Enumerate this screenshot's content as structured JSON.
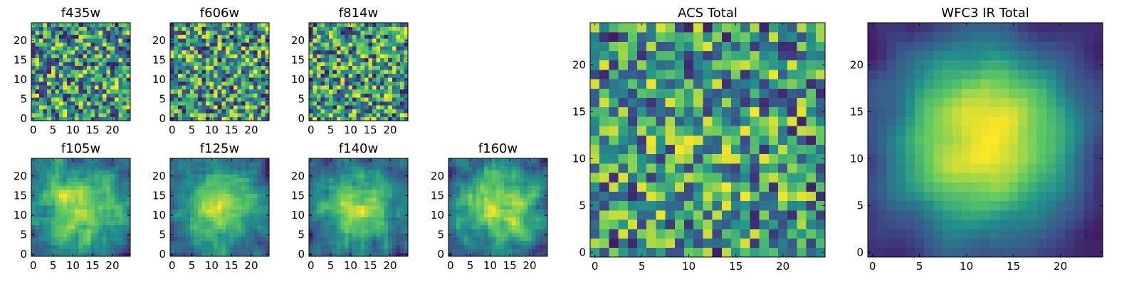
{
  "chart_data": [
    {
      "type": "heatmap",
      "title": "f435w",
      "x_ticks": [
        0,
        5,
        10,
        15,
        20
      ],
      "y_ticks": [
        0,
        5,
        10,
        15,
        20
      ],
      "xlim": [
        -0.5,
        24.5
      ],
      "ylim": [
        -0.5,
        24.5
      ],
      "grid": "off",
      "size": 25,
      "smoothness": 0,
      "center_bump": 0.0,
      "noise": 0.9,
      "seed": 11
    },
    {
      "type": "heatmap",
      "title": "f606w",
      "x_ticks": [
        0,
        5,
        10,
        15,
        20
      ],
      "y_ticks": [
        0,
        5,
        10,
        15,
        20
      ],
      "xlim": [
        -0.5,
        24.5
      ],
      "ylim": [
        -0.5,
        24.5
      ],
      "grid": "off",
      "size": 25,
      "smoothness": 0,
      "center_bump": 0.0,
      "noise": 0.9,
      "seed": 23
    },
    {
      "type": "heatmap",
      "title": "f814w",
      "x_ticks": [
        0,
        5,
        10,
        15,
        20
      ],
      "y_ticks": [
        0,
        5,
        10,
        15,
        20
      ],
      "xlim": [
        -0.5,
        24.5
      ],
      "ylim": [
        -0.5,
        24.5
      ],
      "grid": "off",
      "size": 25,
      "smoothness": 0,
      "center_bump": 0.0,
      "noise": 0.9,
      "seed": 37
    },
    {
      "type": "heatmap",
      "title": "f105w",
      "x_ticks": [
        0,
        5,
        10,
        15,
        20
      ],
      "y_ticks": [
        0,
        5,
        10,
        15,
        20
      ],
      "xlim": [
        -0.5,
        24.5
      ],
      "ylim": [
        -0.5,
        24.5
      ],
      "grid": "off",
      "size": 25,
      "smoothness": 1,
      "center_bump": 0.45,
      "noise": 0.6,
      "seed": 41
    },
    {
      "type": "heatmap",
      "title": "f125w",
      "x_ticks": [
        0,
        5,
        10,
        15,
        20
      ],
      "y_ticks": [
        0,
        5,
        10,
        15,
        20
      ],
      "xlim": [
        -0.5,
        24.5
      ],
      "ylim": [
        -0.5,
        24.5
      ],
      "grid": "off",
      "size": 25,
      "smoothness": 1,
      "center_bump": 0.55,
      "noise": 0.55,
      "seed": 53
    },
    {
      "type": "heatmap",
      "title": "f140w",
      "x_ticks": [
        0,
        5,
        10,
        15,
        20
      ],
      "y_ticks": [
        0,
        5,
        10,
        15,
        20
      ],
      "xlim": [
        -0.5,
        24.5
      ],
      "ylim": [
        -0.5,
        24.5
      ],
      "grid": "off",
      "size": 25,
      "smoothness": 1,
      "center_bump": 0.5,
      "noise": 0.6,
      "seed": 67
    },
    {
      "type": "heatmap",
      "title": "f160w",
      "x_ticks": [
        0,
        5,
        10,
        15,
        20
      ],
      "y_ticks": [
        0,
        5,
        10,
        15,
        20
      ],
      "xlim": [
        -0.5,
        24.5
      ],
      "ylim": [
        -0.5,
        24.5
      ],
      "grid": "off",
      "size": 25,
      "smoothness": 1,
      "center_bump": 0.5,
      "noise": 0.6,
      "seed": 79
    },
    {
      "type": "heatmap",
      "title": "ACS Total",
      "x_ticks": [
        0,
        5,
        10,
        15,
        20
      ],
      "y_ticks": [
        0,
        5,
        10,
        15,
        20
      ],
      "xlim": [
        -0.5,
        24.5
      ],
      "ylim": [
        -0.5,
        24.5
      ],
      "grid": "off",
      "size": 25,
      "smoothness": 0,
      "center_bump": 0.1,
      "noise": 0.75,
      "seed": 97
    },
    {
      "type": "heatmap",
      "title": "WFC3 IR Total",
      "x_ticks": [
        0,
        5,
        10,
        15,
        20
      ],
      "y_ticks": [
        0,
        5,
        10,
        15,
        20
      ],
      "xlim": [
        -0.5,
        24.5
      ],
      "ylim": [
        -0.5,
        24.5
      ],
      "grid": "off",
      "size": 25,
      "smoothness": 2,
      "center_bump": 0.75,
      "noise": 0.35,
      "seed": 113
    }
  ],
  "colormap": [
    "#440154",
    "#3b528b",
    "#21918c",
    "#5ec962",
    "#fde725"
  ]
}
